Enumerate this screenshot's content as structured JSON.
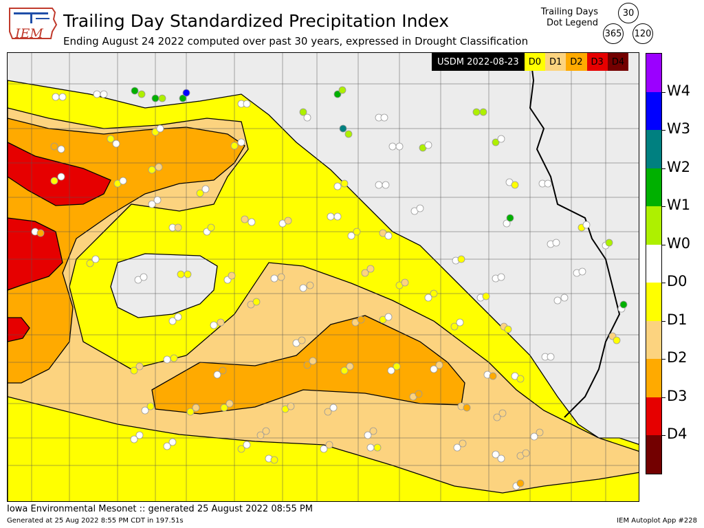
{
  "logo": {
    "text": "IEM"
  },
  "header": {
    "title": "Trailing Day Standardized Precipitation Index",
    "subtitle": "Ending August 24 2022 computed over past 30 years, expressed in Drought Classification"
  },
  "dot_legend": {
    "label_line1": "Trailing Days",
    "label_line2": "Dot Legend",
    "top": "30",
    "left": "365",
    "right": "120"
  },
  "usdm_legend": {
    "date_label": "USDM 2022-08-23",
    "items": [
      {
        "label": "D0",
        "color": "#ffff00"
      },
      {
        "label": "D1",
        "color": "#fcd37f"
      },
      {
        "label": "D2",
        "color": "#ffaa00"
      },
      {
        "label": "D3",
        "color": "#e60000"
      },
      {
        "label": "D4",
        "color": "#730000"
      }
    ]
  },
  "colorbar": {
    "segments": [
      {
        "color": "#9b00ff"
      },
      {
        "color": "#0000ff"
      },
      {
        "color": "#008080"
      },
      {
        "color": "#00b000"
      },
      {
        "color": "#aef000"
      },
      {
        "color": "#ffffff"
      },
      {
        "color": "#ffff00"
      },
      {
        "color": "#fcd37f"
      },
      {
        "color": "#ffaa00"
      },
      {
        "color": "#e60000"
      },
      {
        "color": "#730000"
      }
    ],
    "labels": [
      "W4",
      "W3",
      "W2",
      "W1",
      "W0",
      "D0",
      "D1",
      "D2",
      "D3",
      "D4"
    ]
  },
  "footer": {
    "line1": "Iowa Environmental Mesonet :: generated 25 August 2022 08:55 PM",
    "line2": "Generated at 25 Aug 2022 8:55 PM CDT in 197.51s",
    "app": "IEM Autoplot App #228"
  }
}
